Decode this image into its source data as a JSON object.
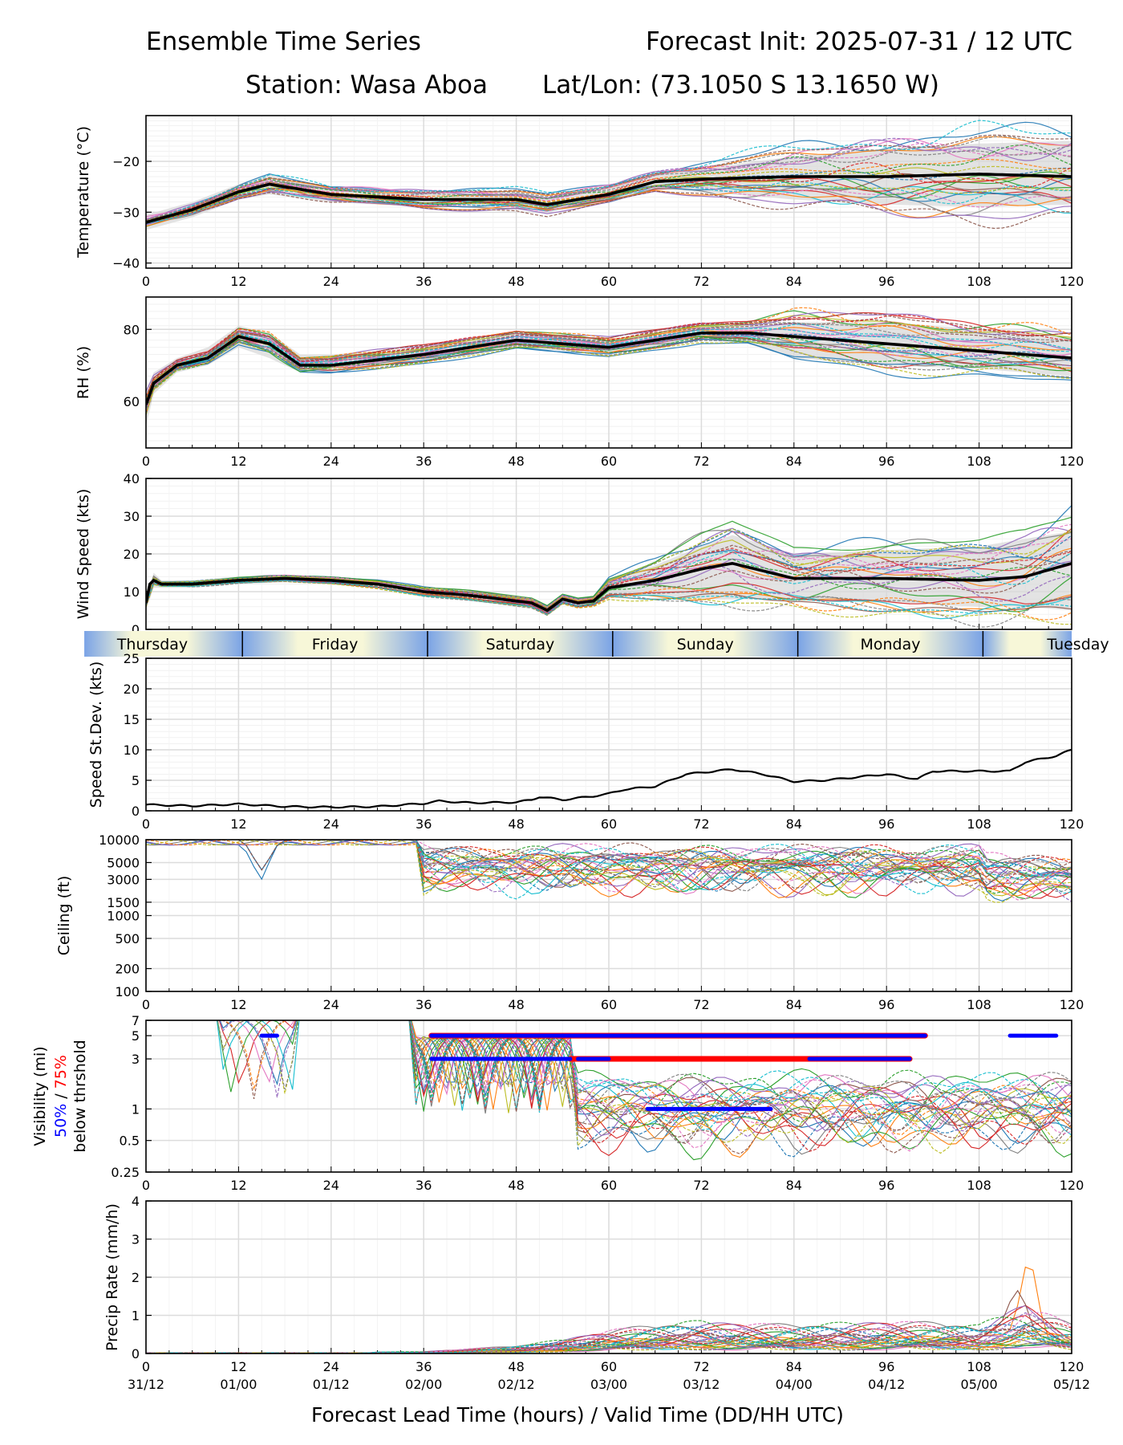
{
  "header": {
    "title_left": "Ensemble Time Series",
    "title_right": "Forecast Init: 2025-07-31 / 12 UTC",
    "station": "Station: Wasa Aboa",
    "latlon": "Lat/Lon: (73.1050 S 13.1650 W)"
  },
  "colors": {
    "members": [
      "#1f77b4",
      "#ff7f0e",
      "#2ca02c",
      "#d62728",
      "#9467bd",
      "#8c564b",
      "#e377c2",
      "#7f7f7f",
      "#bcbd22",
      "#17becf"
    ],
    "mean": "#000000",
    "spread": "#d9d9d9",
    "vis50": "#0000ff",
    "vis75": "#ff0000",
    "day_gradient_start": "#f7f7d8",
    "day_gradient_end": "#7aa3e6"
  },
  "day_labels": [
    "Thursday",
    "Friday",
    "Saturday",
    "Sunday",
    "Monday",
    "Tuesday"
  ],
  "x_axis": {
    "ticks": [
      "0",
      "12",
      "24",
      "36",
      "48",
      "60",
      "72",
      "84",
      "96",
      "108",
      "120"
    ],
    "valid_times": [
      "31/12",
      "01/00",
      "01/12",
      "02/00",
      "02/12",
      "03/00",
      "03/12",
      "04/00",
      "04/12",
      "05/00",
      "05/12"
    ],
    "title": "Forecast Lead Time (hours) / Valid Time (DD/HH UTC)"
  },
  "chart_data": [
    {
      "type": "line",
      "ylabel": "Temperature (°C)",
      "ylim": [
        -41,
        -11
      ],
      "yticks": [
        "−20",
        "−30",
        "−40"
      ],
      "ytick_values": [
        -20,
        -30,
        -40
      ],
      "x": [
        0,
        6,
        12,
        16,
        24,
        36,
        48,
        52,
        60,
        66,
        72,
        84,
        96,
        108,
        120
      ],
      "mean": [
        -32,
        -29.5,
        -26,
        -24.5,
        -26.5,
        -27.5,
        -27.5,
        -28.5,
        -26.5,
        -24,
        -23.5,
        -23,
        -23,
        -22.5,
        -23
      ],
      "spread_low": [
        -33.5,
        -31,
        -27.5,
        -26.5,
        -28,
        -29,
        -29,
        -30,
        -28,
        -25.5,
        -26,
        -27.5,
        -28.5,
        -29,
        -28.5
      ],
      "spread_high": [
        -30.5,
        -28,
        -24.5,
        -22.5,
        -25,
        -26,
        -26,
        -27,
        -25,
        -22.5,
        -21.5,
        -19,
        -17.5,
        -16.5,
        -16
      ]
    },
    {
      "type": "line",
      "ylabel": "RH (%)",
      "ylim": [
        47,
        89
      ],
      "yticks": [
        "80",
        "60"
      ],
      "ytick_values": [
        80,
        60
      ],
      "x": [
        0,
        1,
        4,
        8,
        12,
        16,
        20,
        24,
        36,
        48,
        60,
        72,
        78,
        84,
        96,
        108,
        120
      ],
      "mean": [
        59,
        65,
        70,
        72,
        78,
        76,
        70,
        70,
        73,
        77,
        75,
        79,
        79,
        78,
        76,
        74,
        72
      ],
      "spread_low": [
        53,
        62,
        68,
        70,
        75,
        72,
        68,
        68,
        71,
        75,
        73,
        77,
        76,
        72,
        70,
        69,
        67
      ],
      "spread_high": [
        63,
        68,
        72,
        75,
        81,
        79,
        73,
        73,
        75,
        79,
        77,
        81,
        81,
        82,
        82,
        80,
        78
      ]
    },
    {
      "type": "line",
      "ylabel": "Wind Speed (kts)",
      "ylim": [
        0,
        40
      ],
      "yticks": [
        "40",
        "30",
        "20",
        "10",
        "0"
      ],
      "ytick_values": [
        40,
        30,
        20,
        10,
        0
      ],
      "x": [
        0,
        0.5,
        1,
        2,
        6,
        12,
        18,
        24,
        30,
        36,
        42,
        48,
        50,
        52,
        54,
        56,
        58,
        60,
        66,
        72,
        76,
        84,
        96,
        108,
        114,
        120
      ],
      "mean": [
        7,
        12,
        13,
        12,
        12,
        13,
        13.5,
        13,
        12,
        10,
        9,
        7.5,
        7,
        5,
        8,
        7,
        7.5,
        11,
        13,
        16,
        17.5,
        13.5,
        13.5,
        13,
        14,
        17.5
      ],
      "spread_low": [
        5,
        10,
        11,
        11,
        11,
        12,
        12.5,
        12,
        11,
        9,
        8,
        6.5,
        6,
        4,
        7,
        6,
        6.5,
        9,
        9,
        8,
        8,
        8,
        7,
        6,
        6,
        5
      ],
      "spread_high": [
        9,
        14,
        15,
        13,
        13,
        14,
        14.5,
        14,
        13,
        11,
        10,
        8.5,
        8,
        6,
        9,
        8,
        8.5,
        13,
        17,
        22,
        25,
        20,
        21,
        22,
        24,
        26
      ]
    },
    {
      "type": "line",
      "ylabel": "Speed St.Dev. (kts)",
      "ylim": [
        0,
        25
      ],
      "yticks": [
        "25",
        "20",
        "15",
        "10",
        "5",
        "0"
      ],
      "ytick_values": [
        25,
        20,
        15,
        10,
        5,
        0
      ],
      "x": [
        0,
        6,
        12,
        18,
        24,
        30,
        36,
        38,
        42,
        48,
        50,
        51,
        54,
        58,
        60,
        62,
        66,
        70,
        76,
        80,
        84,
        88,
        92,
        96,
        100,
        102,
        108,
        112,
        114,
        118,
        120
      ],
      "values": [
        1,
        0.8,
        1.1,
        0.7,
        0.6,
        0.7,
        1.2,
        1.6,
        1.3,
        1.4,
        1.8,
        2.3,
        1.8,
        2.4,
        2.8,
        3.5,
        4,
        6,
        6.8,
        6,
        4.8,
        5,
        5.5,
        6,
        5.2,
        6.5,
        6.5,
        6.5,
        8,
        9,
        10
      ]
    },
    {
      "type": "line",
      "ylabel": "Ceiling (ft)",
      "scale": "log",
      "ylim": [
        100,
        10000
      ],
      "yticks": [
        "10000",
        "5000",
        "3000",
        "1500",
        "1000",
        "500",
        "200",
        "100"
      ],
      "ytick_values": [
        10000,
        5000,
        3000,
        1500,
        1000,
        500,
        200,
        100
      ]
    },
    {
      "type": "line",
      "ylabel": "Visibility (mi)",
      "ylabel_50": "50%",
      "ylabel_sep": " / ",
      "ylabel_75": "75%",
      "ylabel2": "below thrshold",
      "scale": "log",
      "ylim": [
        0.25,
        7
      ],
      "yticks": [
        "7",
        "5",
        "3",
        "1",
        "0.5",
        "0.25"
      ],
      "ytick_values": [
        7,
        5,
        3,
        1,
        0.5,
        0.25
      ],
      "threshold_5mi_50": [
        [
          15,
          17
        ],
        [
          37,
          54
        ],
        [
          54,
          101
        ],
        [
          112,
          118
        ]
      ],
      "threshold_5mi_75": [
        [
          37,
          101
        ]
      ],
      "threshold_3mi_50": [
        [
          37,
          55
        ],
        [
          56,
          60
        ],
        [
          86,
          99
        ]
      ],
      "threshold_3mi_75": [
        [
          55,
          99
        ]
      ],
      "threshold_1mi_50": [
        [
          65,
          81
        ]
      ]
    },
    {
      "type": "line",
      "ylabel": "Precip Rate (mm/h)",
      "ylim": [
        0,
        4
      ],
      "yticks": [
        "4",
        "3",
        "2",
        "1",
        "0"
      ],
      "ytick_values": [
        4,
        3,
        2,
        1,
        0
      ],
      "x": [
        0,
        36,
        48,
        54,
        60,
        72,
        84,
        96,
        108,
        114,
        120
      ],
      "mean": [
        0,
        0.02,
        0.08,
        0.15,
        0.25,
        0.35,
        0.3,
        0.35,
        0.3,
        0.55,
        0.3
      ]
    }
  ]
}
